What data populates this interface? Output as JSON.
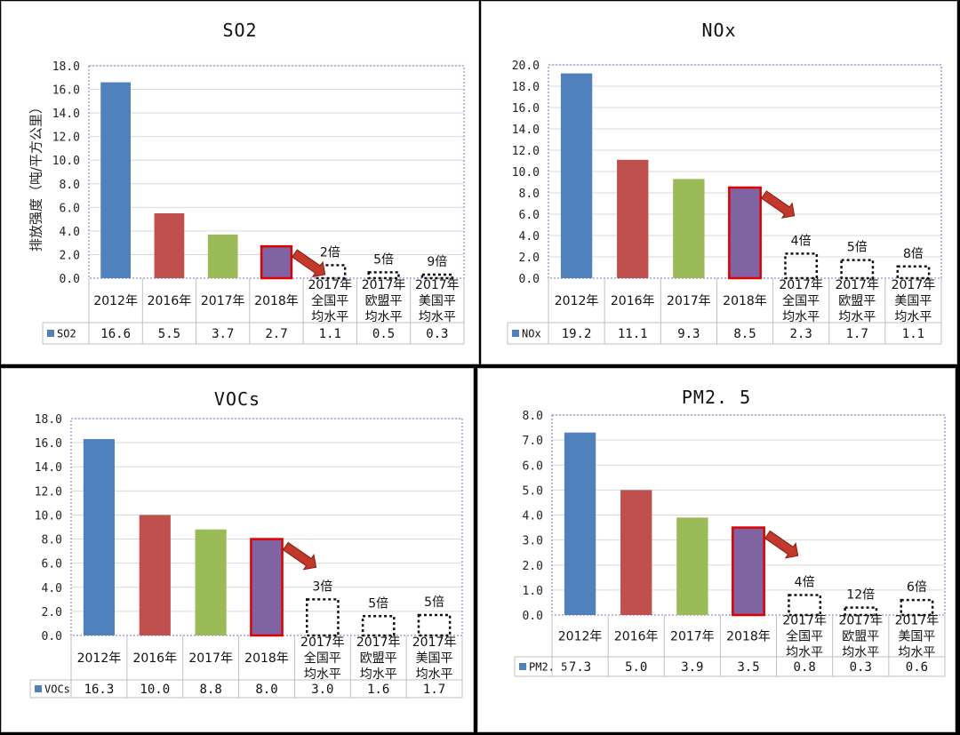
{
  "chart_data": [
    {
      "type": "bar",
      "title": "SO2",
      "ylabel": "排放强度（吨/平方公里）",
      "ylim": [
        0,
        18
      ],
      "ytick_step": 2,
      "ytick_labels": [
        "0.0",
        "2.0",
        "4.0",
        "6.0",
        "8.0",
        "10.0",
        "12.0",
        "14.0",
        "16.0",
        "18.0"
      ],
      "categories": [
        "2012年",
        "2016年",
        "2017年",
        "2018年",
        "2017年\n全国平\n均水平",
        "2017年\n欧盟平\n均水平",
        "2017年\n美国平\n均水平"
      ],
      "series": [
        {
          "name": "SO2",
          "values": [
            16.6,
            5.5,
            3.7,
            2.7,
            1.1,
            0.5,
            0.3
          ]
        }
      ],
      "table_values": [
        "16.6",
        "5.5",
        "3.7",
        "2.7",
        "1.1",
        "0.5",
        "0.3"
      ],
      "multipliers": [
        "2倍",
        "5倍",
        "9倍"
      ],
      "bar_colors": [
        "#4f81bd",
        "#c0504d",
        "#9bbb59",
        "#8064a2"
      ]
    },
    {
      "type": "bar",
      "title": "NOx",
      "ylabel": "",
      "ylim": [
        0,
        20
      ],
      "ytick_step": 2,
      "ytick_labels": [
        "0.0",
        "2.0",
        "4.0",
        "6.0",
        "8.0",
        "10.0",
        "12.0",
        "14.0",
        "16.0",
        "18.0",
        "20.0"
      ],
      "categories": [
        "2012年",
        "2016年",
        "2017年",
        "2018年",
        "2017年\n全国平\n均水平",
        "2017年\n欧盟平\n均水平",
        "2017年\n美国平\n均水平"
      ],
      "series": [
        {
          "name": "NOx",
          "values": [
            19.2,
            11.1,
            9.3,
            8.5,
            2.3,
            1.7,
            1.1
          ]
        }
      ],
      "table_values": [
        "19.2",
        "11.1",
        "9.3",
        "8.5",
        "2.3",
        "1.7",
        "1.1"
      ],
      "multipliers": [
        "4倍",
        "5倍",
        "8倍"
      ],
      "bar_colors": [
        "#4f81bd",
        "#c0504d",
        "#9bbb59",
        "#8064a2"
      ]
    },
    {
      "type": "bar",
      "title": "VOCs",
      "ylabel": "",
      "ylim": [
        0,
        18
      ],
      "ytick_step": 2,
      "ytick_labels": [
        "0.0",
        "2.0",
        "4.0",
        "6.0",
        "8.0",
        "10.0",
        "12.0",
        "14.0",
        "16.0",
        "18.0"
      ],
      "categories": [
        "2012年",
        "2016年",
        "2017年",
        "2018年",
        "2017年\n全国平\n均水平",
        "2017年\n欧盟平\n均水平",
        "2017年\n美国平\n均水平"
      ],
      "series": [
        {
          "name": "VOCs",
          "values": [
            16.3,
            10.0,
            8.8,
            8.0,
            3.0,
            1.6,
            1.7
          ]
        }
      ],
      "table_values": [
        "16.3",
        "10.0",
        "8.8",
        "8.0",
        "3.0",
        "1.6",
        "1.7"
      ],
      "multipliers": [
        "3倍",
        "5倍",
        "5倍"
      ],
      "bar_colors": [
        "#4f81bd",
        "#c0504d",
        "#9bbb59",
        "#8064a2"
      ]
    },
    {
      "type": "bar",
      "title": "PM2. 5",
      "ylabel": "",
      "ylim": [
        0,
        8
      ],
      "ytick_step": 1,
      "ytick_labels": [
        "0.0",
        "1.0",
        "2.0",
        "3.0",
        "4.0",
        "5.0",
        "6.0",
        "7.0",
        "8.0"
      ],
      "categories": [
        "2012年",
        "2016年",
        "2017年",
        "2018年",
        "2017年\n全国平\n均水平",
        "2017年\n欧盟平\n均水平",
        "2017年\n美国平\n均水平"
      ],
      "series": [
        {
          "name": "PM2. 5",
          "values": [
            7.3,
            5.0,
            3.9,
            3.5,
            0.8,
            0.3,
            0.6
          ]
        }
      ],
      "table_values": [
        "7.3",
        "5.0",
        "3.9",
        "3.5",
        "0.8",
        "0.3",
        "0.6"
      ],
      "multipliers": [
        "4倍",
        "12倍",
        "6倍"
      ],
      "bar_colors": [
        "#4f81bd",
        "#c0504d",
        "#9bbb59",
        "#8064a2"
      ]
    }
  ]
}
